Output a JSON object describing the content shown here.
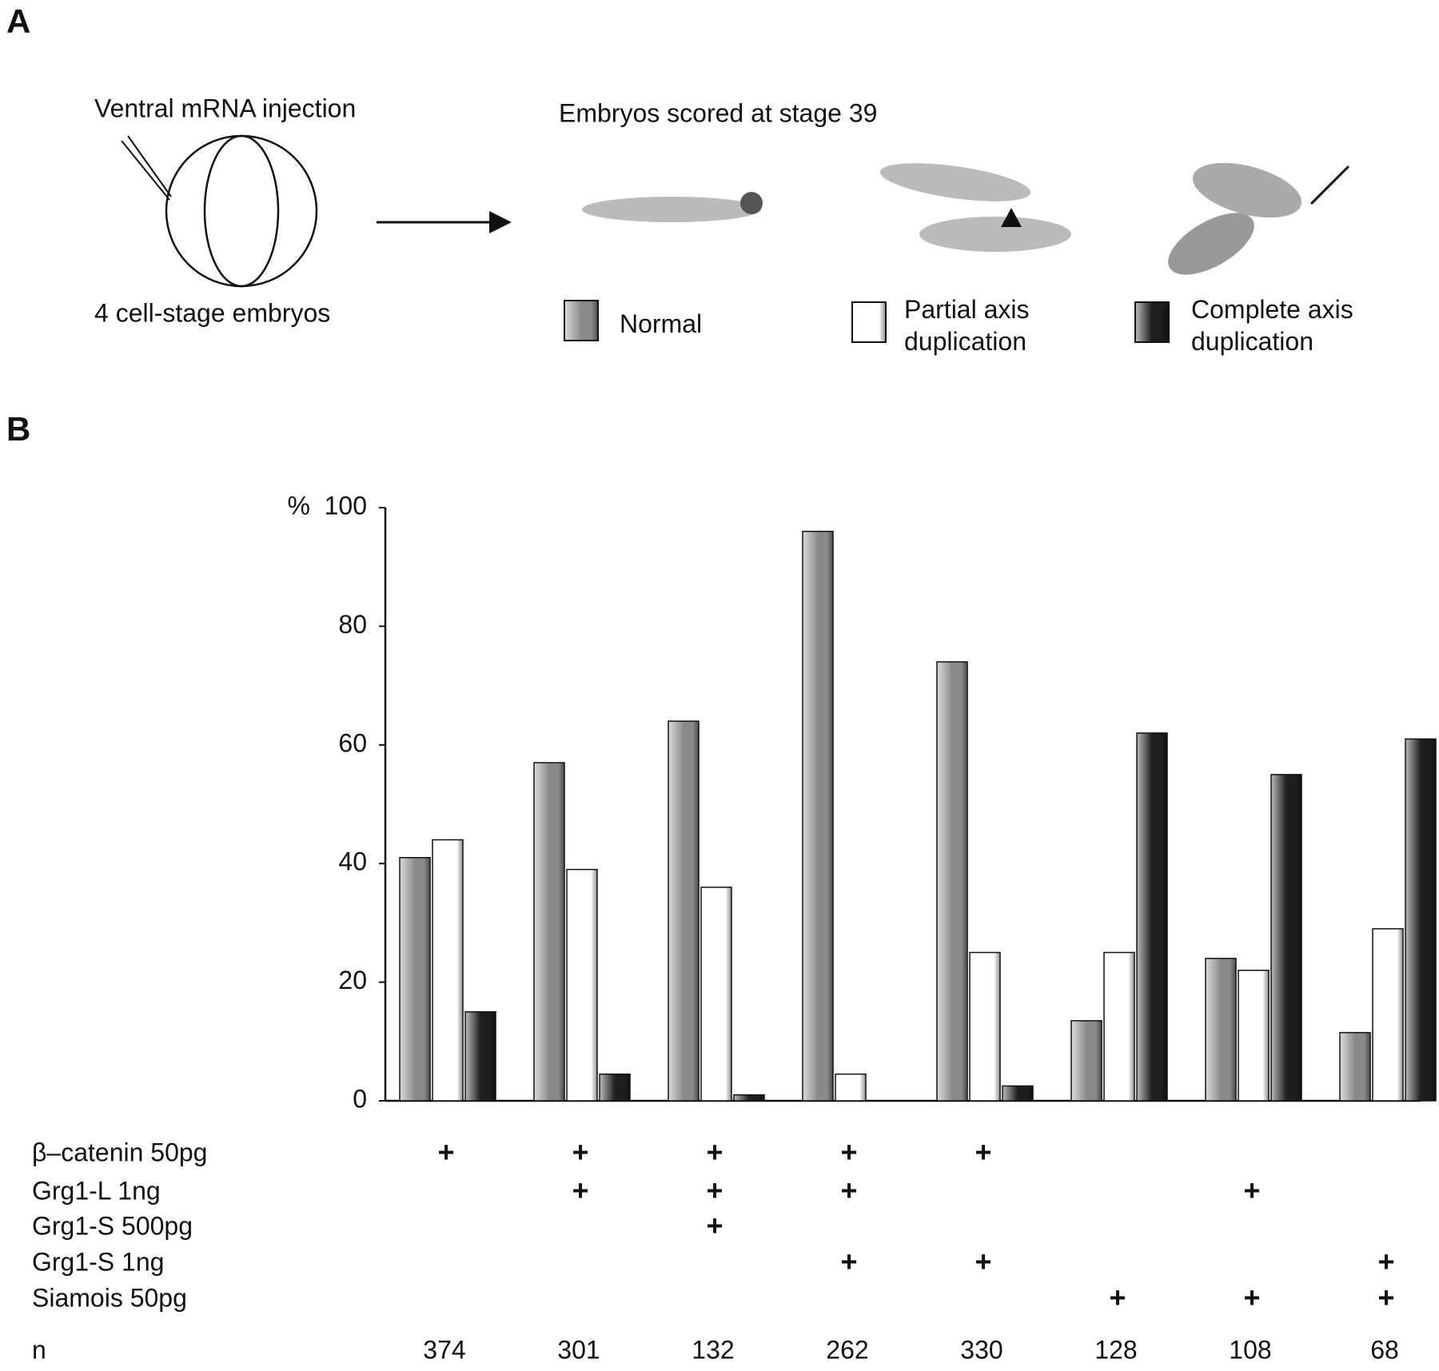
{
  "panel_a": {
    "label": "A",
    "injection": "Ventral mRNA injection",
    "embryo_stage": "4 cell-stage embryos",
    "scored": "Embryos scored at stage 39"
  },
  "panel_b": {
    "label": "B"
  },
  "chart_data": {
    "type": "bar",
    "ylabel": "%",
    "categories": [
      null,
      null,
      null,
      null,
      null,
      null,
      null,
      null
    ],
    "series": [
      {
        "name": "Normal",
        "color": "#8a8a8a",
        "values": [
          41,
          57,
          64,
          96,
          74,
          13.5,
          24,
          11.5
        ]
      },
      {
        "name": "Partial axis duplication",
        "color": "#ffffff",
        "values": [
          44,
          39,
          36,
          4.5,
          25,
          25,
          22,
          29
        ]
      },
      {
        "name": "Complete axis duplication",
        "color": "#1e1e1e",
        "values": [
          15,
          4.5,
          1,
          0,
          2.5,
          62,
          55,
          61
        ]
      }
    ],
    "ylim": [
      0,
      100
    ],
    "yticks": [
      0,
      20,
      40,
      60,
      80,
      100
    ],
    "treatments": [
      {
        "label": "β–catenin 50pg",
        "marks": [
          "+",
          "+",
          "+",
          "+",
          "+",
          null,
          null,
          null
        ]
      },
      {
        "label": "Grg1-L 1ng",
        "marks": [
          null,
          "+",
          "+",
          "+",
          null,
          null,
          "+",
          null
        ]
      },
      {
        "label": "Grg1-S 500pg",
        "marks": [
          null,
          null,
          "+",
          null,
          null,
          null,
          null,
          null
        ]
      },
      {
        "label": "Grg1-S 1ng",
        "marks": [
          null,
          null,
          null,
          "+",
          "+",
          null,
          null,
          "+"
        ]
      },
      {
        "label": "Siamois 50pg",
        "marks": [
          null,
          null,
          null,
          null,
          null,
          "+",
          "+",
          "+"
        ]
      }
    ],
    "n_label": "n",
    "n": [
      374,
      301,
      132,
      262,
      330,
      128,
      108,
      68
    ]
  }
}
